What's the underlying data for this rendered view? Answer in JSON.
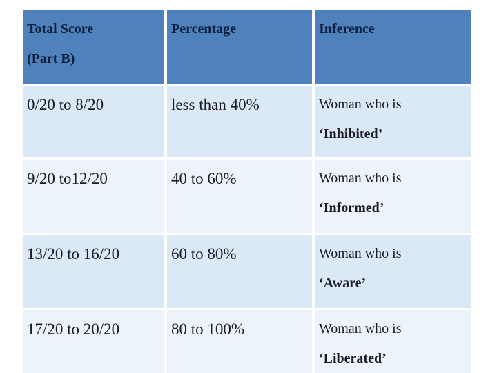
{
  "table": {
    "header": {
      "col1_line1": "Total Score",
      "col1_line2": "(Part B)",
      "col2": "Percentage",
      "col3": "Inference"
    },
    "rows": [
      {
        "score": "0/20 to 8/20",
        "percentage": "less than 40%",
        "inference_prefix": "Woman who is",
        "inference_term": "‘Inhibited’"
      },
      {
        "score": "9/20 to12/20",
        "percentage": "40 to 60%",
        "inference_prefix": "Woman who is",
        "inference_term": "‘Informed’"
      },
      {
        "score": "13/20 to 16/20",
        "percentage": "60 to 80%",
        "inference_prefix": "Woman who is",
        "inference_term": "‘Aware’"
      },
      {
        "score": "17/20 to 20/20",
        "percentage": "80 to 100%",
        "inference_prefix": "Woman who is",
        "inference_term": "‘Liberated’"
      }
    ]
  },
  "colors": {
    "header_background": "#4f81bd",
    "header_text": "#0d1f3c",
    "row_shade_light_blue": "#dbe8f7",
    "row_shade_pale": "#edf3fb",
    "body_text": "#1b1b26",
    "grid_divider": "#ffffff"
  }
}
